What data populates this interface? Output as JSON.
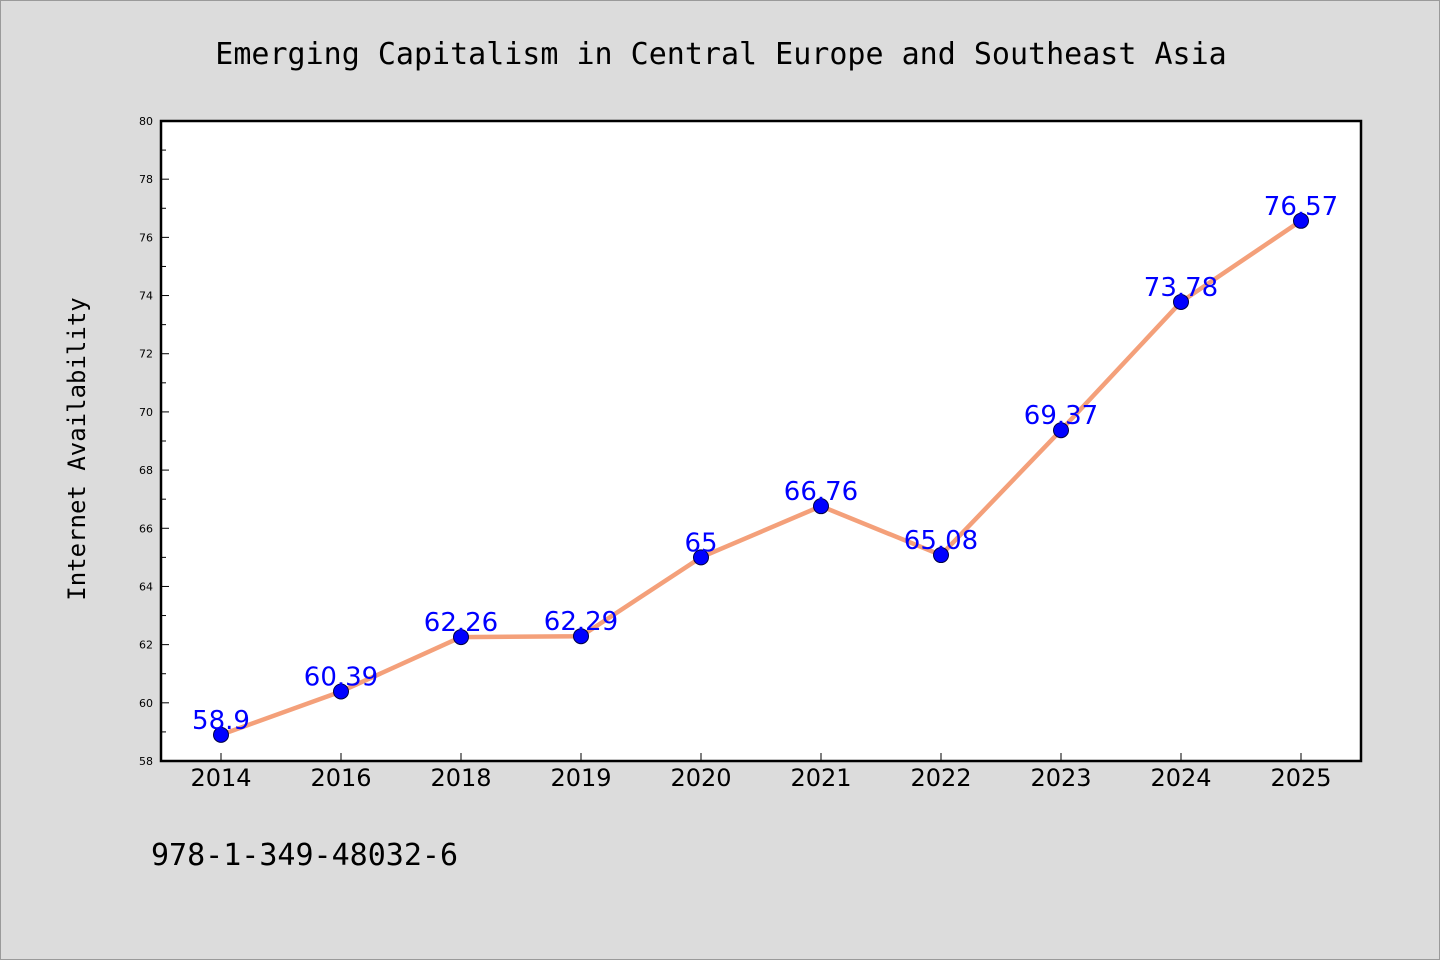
{
  "chart_data": {
    "type": "line",
    "title": "Emerging Capitalism in Central Europe and Southeast Asia",
    "xlabel": "",
    "ylabel": "Internet Availability",
    "categories": [
      "2014",
      "2016",
      "2018",
      "2019",
      "2020",
      "2021",
      "2022",
      "2023",
      "2024",
      "2025"
    ],
    "series": [
      {
        "values": [
          58.9,
          60.39,
          62.26,
          62.29,
          65,
          66.76,
          65.08,
          69.37,
          73.78,
          76.57
        ],
        "labels": [
          "58.9",
          "60.39",
          "62.26",
          "62.29",
          "65",
          "66.76",
          "65.08",
          "69.37",
          "73.78",
          "76.57"
        ],
        "line_color": "#f4a07a",
        "marker_color": "#0000ff"
      }
    ],
    "ylim": [
      58,
      80
    ],
    "yticks": [
      58,
      60,
      62,
      64,
      66,
      68,
      70,
      72,
      74,
      76,
      78,
      80
    ],
    "grid": false,
    "legend": "none"
  },
  "footer": {
    "isbn": "978-1-349-48032-6"
  },
  "colors": {
    "background": "#dcdcdc",
    "plot_background": "#ffffff",
    "line": "#f4a07a",
    "marker": "#0000ff",
    "label": "#0000ff"
  }
}
